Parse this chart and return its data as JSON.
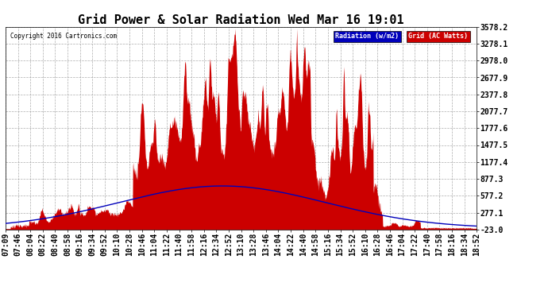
{
  "title": "Grid Power & Solar Radiation Wed Mar 16 19:01",
  "copyright": "Copyright 2016 Cartronics.com",
  "legend_labels": [
    "Radiation (w/m2)",
    "Grid (AC Watts)"
  ],
  "legend_colors": [
    "#0000bb",
    "#cc0000"
  ],
  "y_ticks": [
    3578.2,
    3278.1,
    2978.0,
    2677.9,
    2377.8,
    2077.7,
    1777.6,
    1477.5,
    1177.4,
    877.3,
    577.2,
    277.1,
    -23.0
  ],
  "y_min": -23.0,
  "y_max": 3578.2,
  "x_labels": [
    "07:09",
    "07:46",
    "08:04",
    "08:22",
    "08:40",
    "08:58",
    "09:16",
    "09:34",
    "09:52",
    "10:10",
    "10:28",
    "10:46",
    "11:04",
    "11:22",
    "11:40",
    "11:58",
    "12:16",
    "12:34",
    "12:52",
    "13:10",
    "13:28",
    "13:46",
    "14:04",
    "14:22",
    "14:40",
    "14:58",
    "15:16",
    "15:34",
    "15:52",
    "16:10",
    "16:28",
    "16:46",
    "17:04",
    "17:22",
    "17:40",
    "17:58",
    "18:16",
    "18:34",
    "18:52"
  ],
  "background_color": "#ffffff",
  "plot_bg_color": "#ffffff",
  "grid_color": "#999999",
  "title_fontsize": 11,
  "axis_fontsize": 7,
  "red_color": "#cc0000",
  "blue_color": "#0000bb"
}
